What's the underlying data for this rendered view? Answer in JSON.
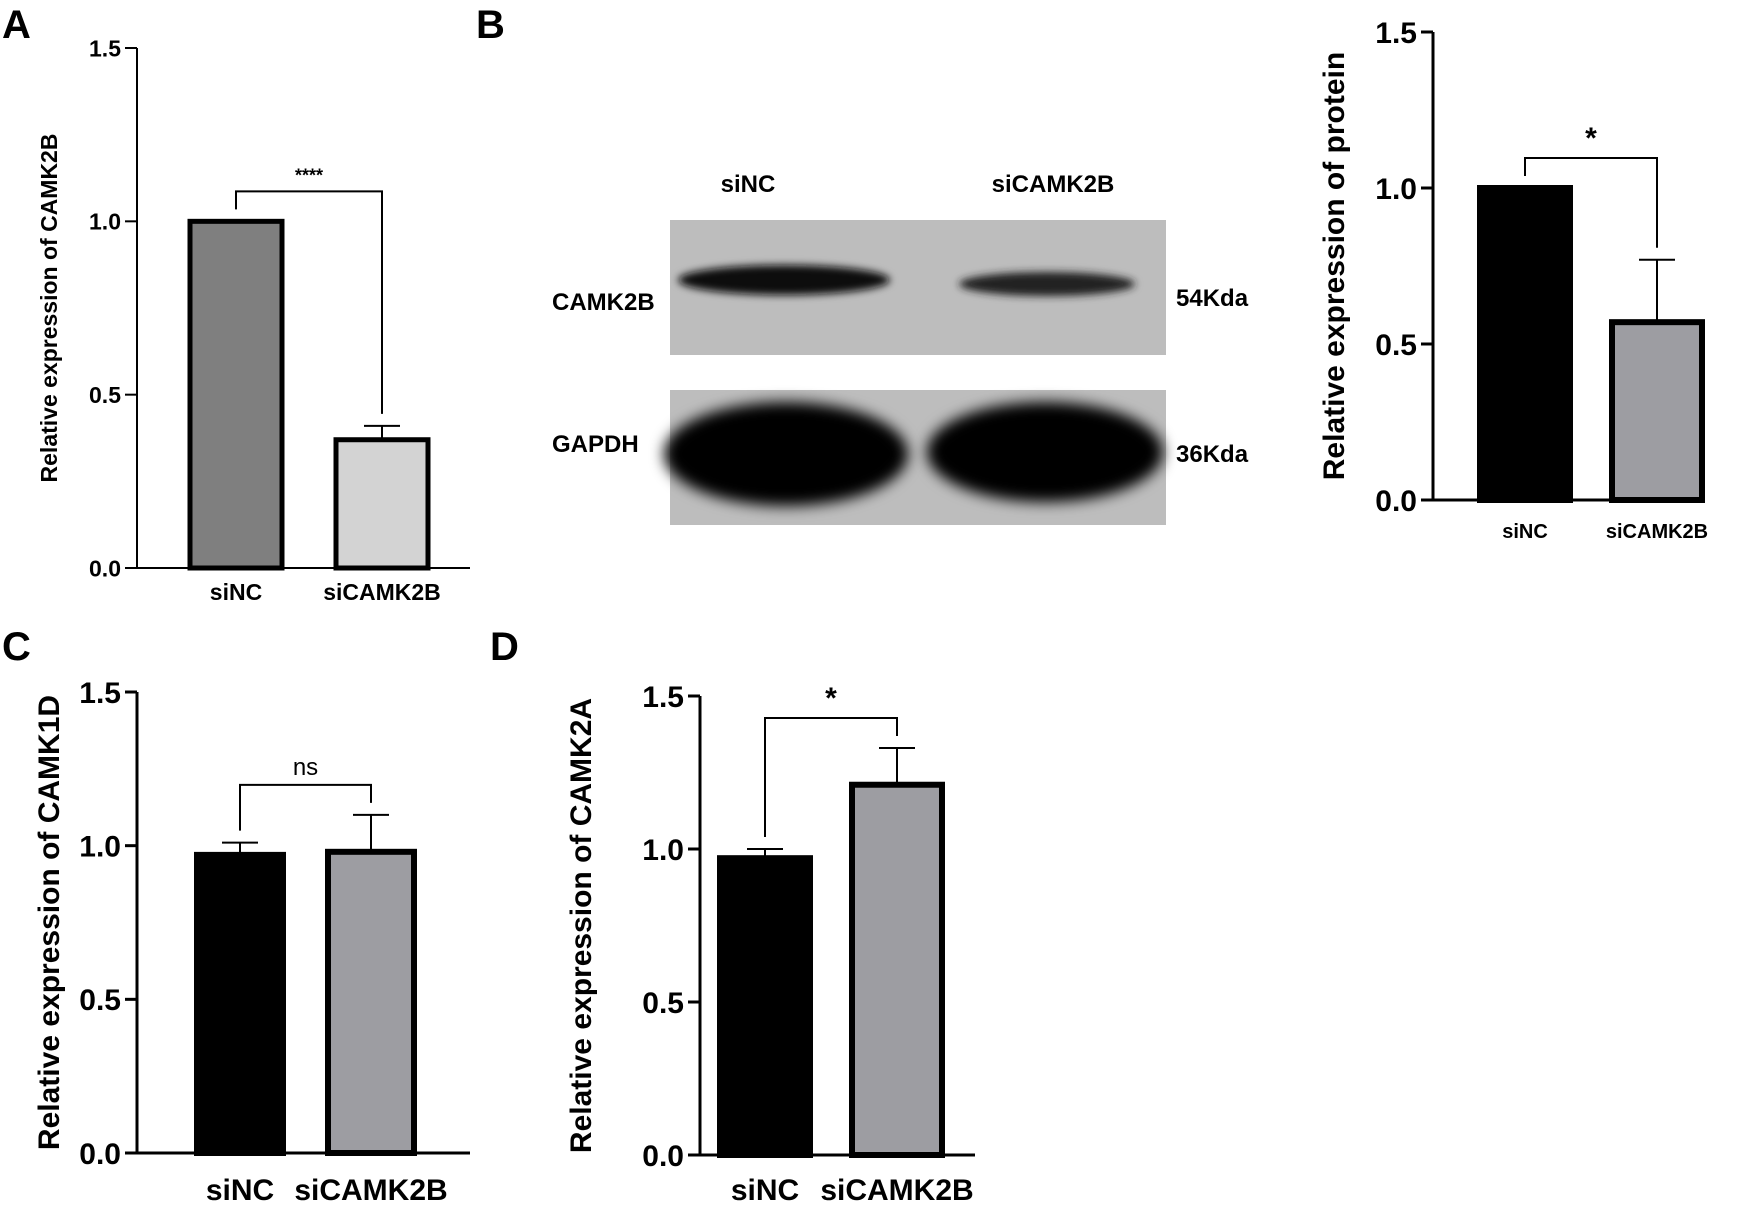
{
  "panel_letters": {
    "a": "A",
    "b": "B",
    "c": "C",
    "d": "D"
  },
  "western_blot": {
    "lane_labels": [
      "siNC",
      "siCAMK2B"
    ],
    "rows": [
      {
        "protein": "CAMK2B",
        "size": "54Kda"
      },
      {
        "protein": "GAPDH",
        "size": "36Kda"
      }
    ]
  },
  "chart_data": [
    {
      "panel": "A",
      "type": "bar",
      "categories": [
        "siNC",
        "siCAMK2B"
      ],
      "values": [
        1.0,
        0.37
      ],
      "error": [
        0.0,
        0.04
      ],
      "colors": [
        "#7f7f7f",
        "#d3d3d3"
      ],
      "ylabel": "Relative expression of CAMK2B",
      "ylim": [
        0,
        1.5
      ],
      "yticks": [
        "0.0",
        "0.5",
        "1.0",
        "1.5"
      ],
      "significance": "****"
    },
    {
      "panel": "B",
      "type": "bar",
      "categories": [
        "siNC",
        "siCAMK2B"
      ],
      "values": [
        1.0,
        0.57
      ],
      "error": [
        0.0,
        0.2
      ],
      "colors": [
        "#000000",
        "#9d9da2"
      ],
      "ylabel": "Relative expression of protein",
      "ylim": [
        0,
        1.5
      ],
      "yticks": [
        "0.0",
        "0.5",
        "1.0",
        "1.5"
      ],
      "significance": "*"
    },
    {
      "panel": "C",
      "type": "bar",
      "categories": [
        "siNC",
        "siCAMK2B"
      ],
      "values": [
        0.97,
        0.98
      ],
      "error": [
        0.04,
        0.12
      ],
      "colors": [
        "#000000",
        "#9d9da2"
      ],
      "ylabel": "Relative expression of CAMK1D",
      "ylim": [
        0,
        1.5
      ],
      "yticks": [
        "0.0",
        "0.5",
        "1.0",
        "1.5"
      ],
      "significance": "ns"
    },
    {
      "panel": "D",
      "type": "bar",
      "categories": [
        "siNC",
        "siCAMK2B"
      ],
      "values": [
        0.97,
        1.21
      ],
      "error": [
        0.03,
        0.12
      ],
      "colors": [
        "#000000",
        "#9d9da2"
      ],
      "ylabel": "Relative expression of CAMK2A",
      "ylim": [
        0,
        1.5
      ],
      "yticks": [
        "0.0",
        "0.5",
        "1.0",
        "1.5"
      ],
      "significance": "*"
    }
  ]
}
